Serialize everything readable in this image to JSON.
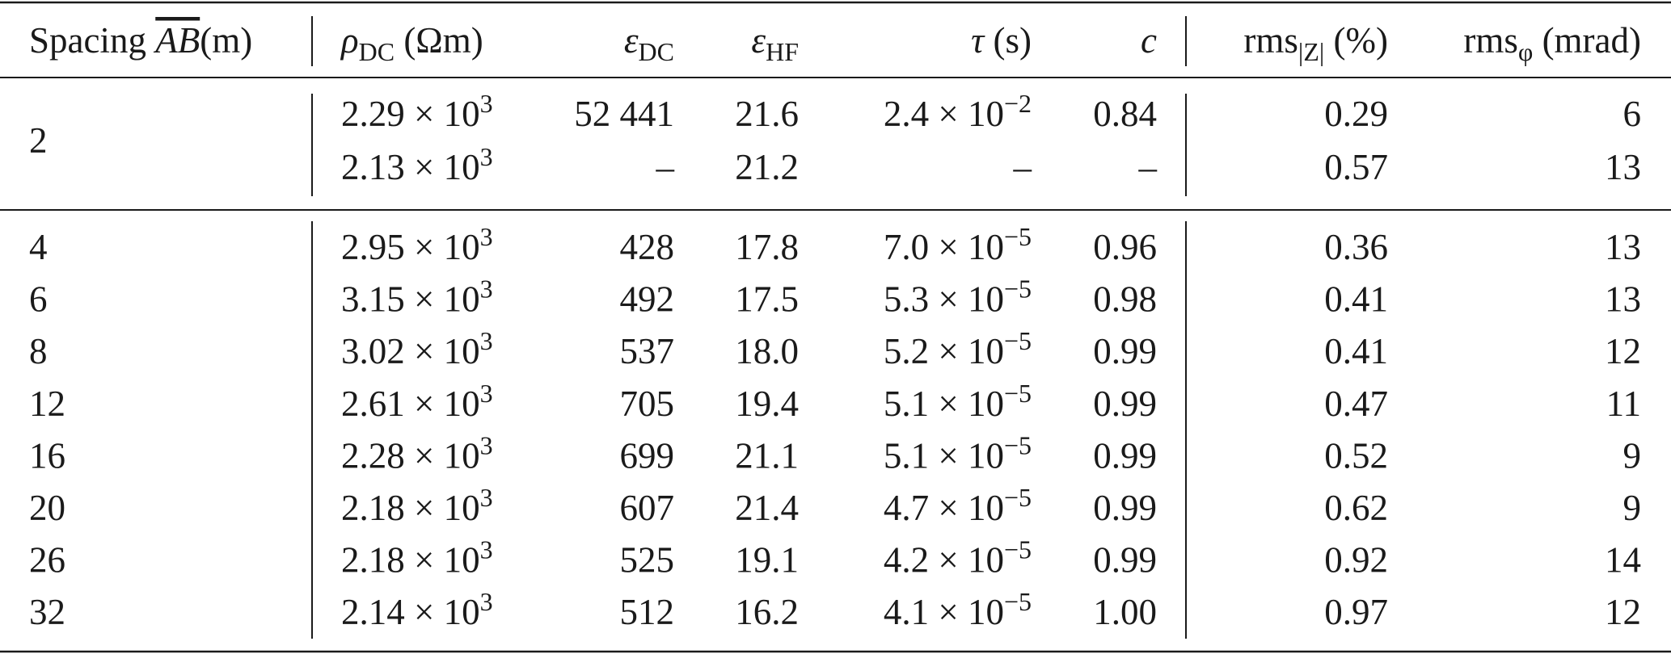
{
  "table": {
    "header": [
      {
        "text": "Spacing ",
        "overline": "AB",
        "suffix": "(m)"
      },
      {
        "text": "ρ",
        "sub": "DC",
        "suffix": " (Ωm)"
      },
      {
        "text": "ε",
        "sub": "DC"
      },
      {
        "text": "ε",
        "sub": "HF"
      },
      {
        "text": "τ",
        "suffix": " (s)"
      },
      {
        "text": "c"
      },
      {
        "text": "rms",
        "sub": "|Z|",
        "suffix": " (%)"
      },
      {
        "text": "rms",
        "sub": "φ",
        "suffix": " (mrad)"
      }
    ],
    "groups": [
      {
        "spacing": "2",
        "rows": [
          [
            {
              "text": "2.29 × 10",
              "sup": "3"
            },
            "52 441",
            "21.6",
            {
              "text": "2.4 × 10",
              "sup": "−2"
            },
            "0.84",
            "0.29",
            "6"
          ],
          [
            {
              "text": "2.13 × 10",
              "sup": "3"
            },
            "–",
            "21.2",
            "–",
            "–",
            "0.57",
            "13"
          ]
        ]
      },
      {
        "rows": [
          [
            "4",
            {
              "text": "2.95 × 10",
              "sup": "3"
            },
            "428",
            "17.8",
            {
              "text": "7.0 × 10",
              "sup": "−5"
            },
            "0.96",
            "0.36",
            "13"
          ],
          [
            "6",
            {
              "text": "3.15 × 10",
              "sup": "3"
            },
            "492",
            "17.5",
            {
              "text": "5.3 × 10",
              "sup": "−5"
            },
            "0.98",
            "0.41",
            "13"
          ],
          [
            "8",
            {
              "text": "3.02 × 10",
              "sup": "3"
            },
            "537",
            "18.0",
            {
              "text": "5.2 × 10",
              "sup": "−5"
            },
            "0.99",
            "0.41",
            "12"
          ],
          [
            "12",
            {
              "text": "2.61 × 10",
              "sup": "3"
            },
            "705",
            "19.4",
            {
              "text": "5.1 × 10",
              "sup": "−5"
            },
            "0.99",
            "0.47",
            "11"
          ],
          [
            "16",
            {
              "text": "2.28 × 10",
              "sup": "3"
            },
            "699",
            "21.1",
            {
              "text": "5.1 × 10",
              "sup": "−5"
            },
            "0.99",
            "0.52",
            "9"
          ],
          [
            "20",
            {
              "text": "2.18 × 10",
              "sup": "3"
            },
            "607",
            "21.4",
            {
              "text": "4.7 × 10",
              "sup": "−5"
            },
            "0.99",
            "0.62",
            "9"
          ],
          [
            "26",
            {
              "text": "2.18 × 10",
              "sup": "3"
            },
            "525",
            "19.1",
            {
              "text": "4.2 × 10",
              "sup": "−5"
            },
            "0.99",
            "0.92",
            "14"
          ],
          [
            "32",
            {
              "text": "2.14 × 10",
              "sup": "3"
            },
            "512",
            "16.2",
            {
              "text": "4.1 × 10",
              "sup": "−5"
            },
            "1.00",
            "0.97",
            "12"
          ]
        ]
      }
    ]
  }
}
